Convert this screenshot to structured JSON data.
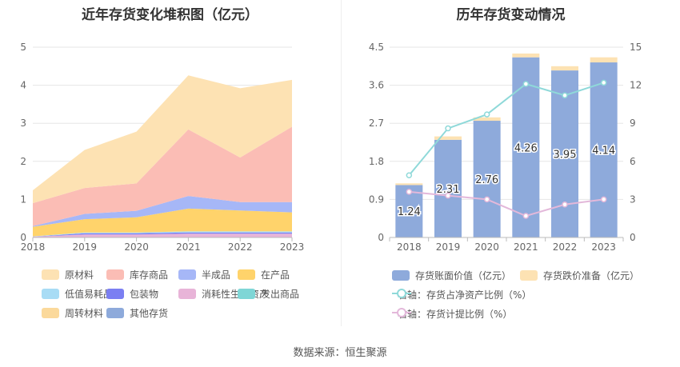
{
  "source_label": "数据来源：恒生聚源",
  "chart_data": [
    {
      "type": "area",
      "title": "近年存货变化堆积图（亿元）",
      "x": [
        "2018",
        "2019",
        "2020",
        "2021",
        "2022",
        "2023"
      ],
      "ylim": [
        0,
        5
      ],
      "yticks": [
        "0",
        "1",
        "2",
        "3",
        "4",
        "5"
      ],
      "stacked": true,
      "grid": true,
      "legend_position": "bottom",
      "series": [
        {
          "name": "其他存货",
          "color": "#8eaadb",
          "values": [
            0,
            0,
            0,
            0,
            0,
            0
          ]
        },
        {
          "name": "周转材料",
          "color": "#fbd99b",
          "values": [
            0,
            0,
            0,
            0,
            0,
            0
          ]
        },
        {
          "name": "发出商品",
          "color": "#7fd6d6",
          "values": [
            0,
            0,
            0,
            0,
            0,
            0
          ]
        },
        {
          "name": "消耗性生物资产",
          "color": "#e8b4d8",
          "values": [
            0.02,
            0.08,
            0.08,
            0.1,
            0.1,
            0.1
          ]
        },
        {
          "name": "包装物",
          "color": "#7b7ff2",
          "values": [
            0,
            0.03,
            0.03,
            0.03,
            0.03,
            0.03
          ]
        },
        {
          "name": "低值易耗品",
          "color": "#a8dcf5",
          "values": [
            0.01,
            0.02,
            0.02,
            0.03,
            0.03,
            0.03
          ]
        },
        {
          "name": "在产品",
          "color": "#ffd36b",
          "values": [
            0.25,
            0.35,
            0.4,
            0.6,
            0.55,
            0.5
          ]
        },
        {
          "name": "半成品",
          "color": "#a6b7f7",
          "values": [
            0.02,
            0.14,
            0.17,
            0.33,
            0.22,
            0.27
          ]
        },
        {
          "name": "库存商品",
          "color": "#fbbdb5",
          "values": [
            0.6,
            0.68,
            0.72,
            1.75,
            1.17,
            1.98
          ]
        },
        {
          "name": "原材料",
          "color": "#fde2b3",
          "values": [
            0.34,
            1.0,
            1.36,
            1.42,
            1.82,
            1.23
          ]
        }
      ],
      "legend": [
        {
          "name": "原材料",
          "color": "#fde2b3"
        },
        {
          "name": "库存商品",
          "color": "#fbbdb5"
        },
        {
          "name": "半成品",
          "color": "#a6b7f7"
        },
        {
          "name": "在产品",
          "color": "#ffd36b"
        },
        {
          "name": "低值易耗品",
          "color": "#a8dcf5"
        },
        {
          "name": "包装物",
          "color": "#7b7ff2"
        },
        {
          "name": "消耗性生物资产",
          "color": "#e8b4d8"
        },
        {
          "name": "发出商品",
          "color": "#7fd6d6"
        },
        {
          "name": "周转材料",
          "color": "#fbd99b"
        },
        {
          "name": "其他存货",
          "color": "#8eaadb"
        }
      ]
    },
    {
      "type": "bar",
      "title": "历年存货变动情况",
      "categories": [
        "2018",
        "2019",
        "2020",
        "2021",
        "2022",
        "2023"
      ],
      "ylim": [
        0,
        4.5
      ],
      "yticks": [
        "0",
        "0.9",
        "1.8",
        "2.7",
        "3.6",
        "4.5"
      ],
      "y2lim": [
        0,
        15
      ],
      "y2ticks": [
        "0",
        "3",
        "6",
        "9",
        "12",
        "15"
      ],
      "stacked": true,
      "grid": true,
      "legend_position": "bottom",
      "bar_series": [
        {
          "name": "存货账面价值（亿元）",
          "color": "#8eaadb",
          "values": [
            1.24,
            2.31,
            2.76,
            4.26,
            3.95,
            4.14
          ],
          "labels": [
            "1.24",
            "2.31",
            "2.76",
            "4.26",
            "3.95",
            "4.14"
          ]
        },
        {
          "name": "存货跌价准备（亿元）",
          "color": "#fde2b3",
          "values": [
            0.04,
            0.08,
            0.08,
            0.09,
            0.1,
            0.12
          ]
        }
      ],
      "line_series": [
        {
          "name": "右轴：存货占净资产比例（%）",
          "color": "#8fd9d9",
          "values": [
            4.9,
            8.6,
            9.7,
            12.1,
            11.2,
            12.2
          ]
        },
        {
          "name": "右轴：存货计提比例（%）",
          "color": "#e3b8da",
          "values": [
            3.6,
            3.3,
            3.0,
            1.7,
            2.6,
            3.0
          ]
        }
      ]
    }
  ]
}
